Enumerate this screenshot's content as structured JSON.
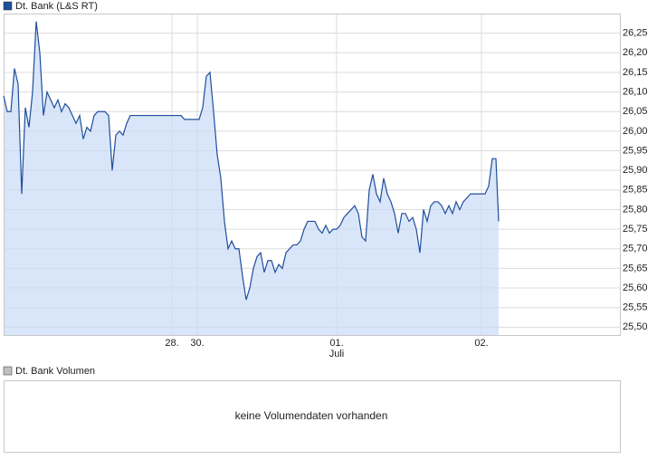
{
  "chart_data": {
    "type": "line",
    "legend_title": null,
    "x": [
      0,
      1,
      2,
      3,
      4,
      5,
      6,
      7,
      8,
      9,
      10,
      11,
      12,
      13,
      14,
      15,
      16,
      17,
      18,
      19,
      20,
      21,
      22,
      23,
      24,
      25,
      26,
      27,
      28,
      29,
      30,
      31,
      32,
      33,
      34,
      35,
      36,
      37,
      38,
      39,
      40,
      41,
      42,
      43,
      44,
      45,
      46,
      47,
      48,
      49,
      50,
      51,
      52,
      53,
      54,
      55,
      56,
      57,
      58,
      59,
      60,
      61,
      62,
      63,
      64,
      65,
      66,
      67,
      68,
      69,
      70,
      71,
      72,
      73,
      74,
      75,
      76,
      77,
      78,
      79,
      80,
      81,
      82,
      83,
      84,
      85,
      86,
      87,
      88,
      89,
      90,
      91,
      92,
      93,
      94,
      95,
      96,
      97,
      98,
      99,
      100,
      101,
      102,
      103,
      104,
      105,
      106,
      107,
      108,
      109,
      110,
      111,
      112,
      113,
      114,
      115,
      116,
      117,
      118,
      119,
      120,
      121,
      122,
      123,
      124,
      125,
      126,
      127,
      128,
      129,
      130,
      131,
      132,
      133,
      134,
      135,
      136,
      136.75
    ],
    "series": [
      {
        "name": "Dt. Bank (L&S RT)",
        "color": "#1f4e9c",
        "fill": "#c9dbf7",
        "values": [
          26.09,
          26.05,
          26.05,
          26.16,
          26.12,
          25.84,
          26.06,
          26.01,
          26.1,
          26.28,
          26.2,
          26.04,
          26.1,
          26.08,
          26.06,
          26.08,
          26.05,
          26.07,
          26.06,
          26.04,
          26.02,
          26.04,
          25.98,
          26.01,
          26.0,
          26.04,
          26.05,
          26.05,
          26.05,
          26.04,
          25.9,
          25.99,
          26.0,
          25.99,
          26.02,
          26.04,
          26.04,
          26.04,
          26.04,
          26.04,
          26.04,
          26.04,
          26.04,
          26.04,
          26.04,
          26.04,
          26.04,
          26.04,
          26.04,
          26.04,
          26.03,
          26.03,
          26.03,
          26.03,
          26.03,
          26.06,
          26.14,
          26.15,
          26.05,
          25.94,
          25.88,
          25.77,
          25.7,
          25.72,
          25.7,
          25.7,
          25.63,
          25.57,
          25.6,
          25.65,
          25.68,
          25.69,
          25.64,
          25.67,
          25.67,
          25.64,
          25.66,
          25.65,
          25.69,
          25.7,
          25.71,
          25.71,
          25.72,
          25.75,
          25.77,
          25.77,
          25.77,
          25.75,
          25.74,
          25.76,
          25.74,
          25.75,
          25.75,
          25.76,
          25.78,
          25.79,
          25.8,
          25.81,
          25.79,
          25.73,
          25.72,
          25.85,
          25.89,
          25.84,
          25.82,
          25.88,
          25.84,
          25.82,
          25.79,
          25.74,
          25.79,
          25.79,
          25.77,
          25.78,
          25.75,
          25.69,
          25.8,
          25.77,
          25.81,
          25.82,
          25.82,
          25.81,
          25.79,
          25.81,
          25.79,
          25.82,
          25.8,
          25.82,
          25.83,
          25.84,
          25.84,
          25.84,
          25.84,
          25.84,
          25.86,
          25.93,
          25.93,
          25.77
        ]
      }
    ],
    "xlim": [
      0,
      170.25
    ],
    "xticks": [
      {
        "value": 46.5,
        "label": "28."
      },
      {
        "value": 53.5,
        "label": "30."
      },
      {
        "value": 92,
        "label": "01."
      },
      {
        "value": 132,
        "label": "02."
      }
    ],
    "month_label": {
      "value": 92,
      "label": "Juli"
    },
    "ylim": [
      25.48,
      26.3
    ],
    "yticks": [
      {
        "value": 25.5,
        "label": "25,50"
      },
      {
        "value": 25.55,
        "label": "25,55"
      },
      {
        "value": 25.6,
        "label": "25,60"
      },
      {
        "value": 25.65,
        "label": "25,65"
      },
      {
        "value": 25.7,
        "label": "25,70"
      },
      {
        "value": 25.75,
        "label": "25,75"
      },
      {
        "value": 25.8,
        "label": "25,80"
      },
      {
        "value": 25.85,
        "label": "25,85"
      },
      {
        "value": 25.9,
        "label": "25,90"
      },
      {
        "value": 25.95,
        "label": "25,95"
      },
      {
        "value": 26.0,
        "label": "26,00"
      },
      {
        "value": 26.05,
        "label": "26,05"
      },
      {
        "value": 26.1,
        "label": "26,10"
      },
      {
        "value": 26.15,
        "label": "26,15"
      },
      {
        "value": 26.2,
        "label": "26,20"
      },
      {
        "value": 26.25,
        "label": "26,25"
      }
    ],
    "grid": true
  },
  "volume_panel": {
    "legend": "Dt. Bank Volumen",
    "message": "keine Volumendaten vorhanden"
  }
}
